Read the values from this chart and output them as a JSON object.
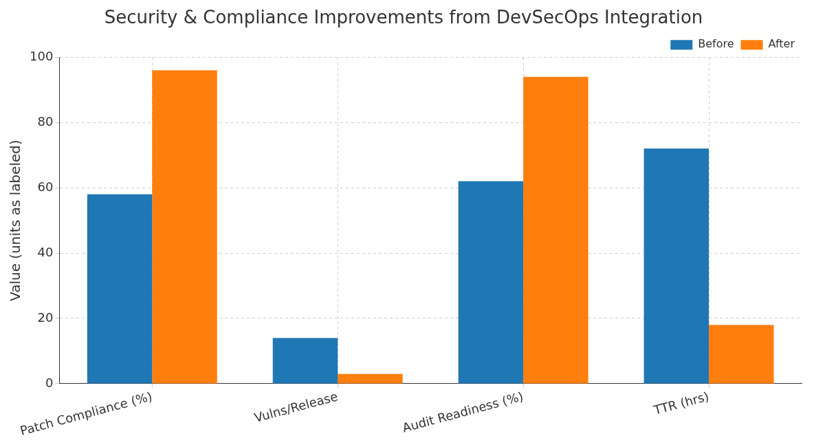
{
  "chart_data": {
    "type": "bar",
    "title": "Security & Compliance Improvements from DevSecOps Integration",
    "ylabel": "Value (units as labeled)",
    "categories": [
      "Patch Compliance (%)",
      "Vulns/Release",
      "Audit Readiness (%)",
      "TTR (hrs)"
    ],
    "series": [
      {
        "name": "Before",
        "color": "#1f77b4",
        "values": [
          58,
          14,
          62,
          72
        ]
      },
      {
        "name": "After",
        "color": "#ff7f0e",
        "values": [
          96,
          3,
          94,
          18
        ]
      }
    ],
    "ylim": [
      0,
      100
    ],
    "yticks": [
      0,
      20,
      40,
      60,
      80,
      100
    ],
    "grid": true,
    "legend": "top right"
  }
}
